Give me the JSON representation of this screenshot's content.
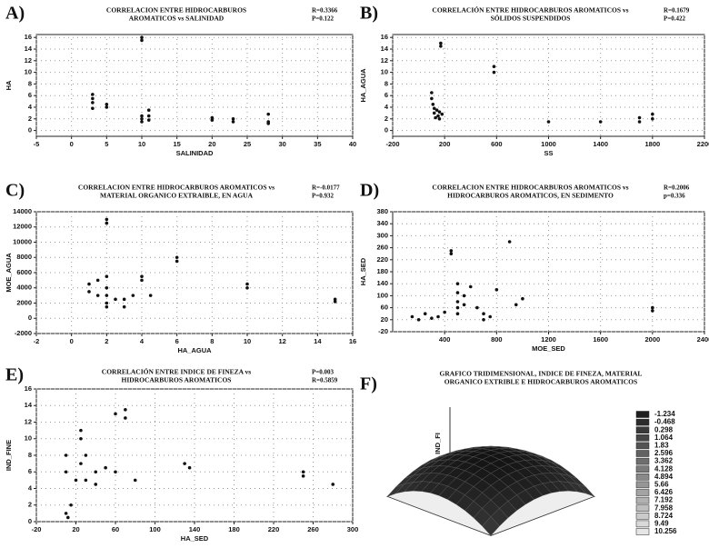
{
  "chart_data": [
    {
      "type": "scatter",
      "label": "A)",
      "title": [
        "CORRELACION ENTRE HIDROCARBUROS",
        "AROMATICOS vs SALINIDAD"
      ],
      "stats": [
        "R=0.3366",
        "P=0.122"
      ],
      "x_label": "SALINIDAD",
      "y_label": "HA",
      "xlim": [
        -5,
        40
      ],
      "ylim": [
        -1,
        16.5
      ],
      "xticks": [
        -5,
        0,
        5,
        10,
        15,
        20,
        25,
        30,
        35,
        40
      ],
      "yticks": [
        0,
        2,
        4,
        6,
        8,
        10,
        12,
        14,
        16
      ],
      "grid": true,
      "color": "#111111",
      "x": [
        3,
        3,
        3,
        3,
        5,
        5,
        10,
        10,
        10,
        10,
        10,
        11,
        11,
        11,
        20,
        20,
        23,
        23,
        28,
        28,
        28
      ],
      "y": [
        6.2,
        5.5,
        4.8,
        3.8,
        4.5,
        4,
        15.5,
        16,
        2.5,
        2,
        1.5,
        3.5,
        2.5,
        1.8,
        2.2,
        1.8,
        2,
        1.5,
        2.8,
        1.5,
        1.2
      ]
    },
    {
      "type": "scatter",
      "label": "B)",
      "title": [
        "CORRELACIÓN ENTRE HIDROCARBUROS AROMATICOS vs",
        "SÓLIDOS SUSPENDIDOS"
      ],
      "stats": [
        "R=0.1679",
        "P=0.422"
      ],
      "x_label": "SS",
      "y_label": "HA_AGUA",
      "xlim": [
        -200,
        2200
      ],
      "ylim": [
        -1,
        16.5
      ],
      "xticks": [
        -200,
        200,
        600,
        1000,
        1400,
        1800,
        2200
      ],
      "yticks": [
        0,
        2,
        4,
        6,
        8,
        10,
        12,
        14,
        16
      ],
      "grid": true,
      "color": "#111111",
      "x": [
        100,
        100,
        110,
        120,
        120,
        130,
        140,
        150,
        160,
        170,
        170,
        160,
        180,
        580,
        580,
        1000,
        1400,
        1700,
        1700,
        1800,
        1800
      ],
      "y": [
        6.5,
        5.5,
        4.5,
        3.8,
        3,
        2.2,
        3.5,
        2.5,
        2,
        15,
        14.5,
        3.2,
        2.8,
        11,
        10,
        1.5,
        1.5,
        2.2,
        1.5,
        2.8,
        2
      ]
    },
    {
      "type": "scatter",
      "label": "C)",
      "title": [
        "CORRELACION ENTRE HIDROCARBUROS AROMATICOS vs",
        "MATERIAL ORGANICO EXTRAIBLE, EN AGUA"
      ],
      "stats": [
        "R=-0.0177",
        "P=0.932"
      ],
      "x_label": "HA_AGUA",
      "y_label": "MOE_AGUA",
      "xlim": [
        -2,
        16
      ],
      "ylim": [
        -2000,
        14000
      ],
      "xticks": [
        -2,
        0,
        2,
        4,
        6,
        8,
        10,
        12,
        14,
        16
      ],
      "yticks": [
        -2000,
        0,
        2000,
        4000,
        6000,
        8000,
        10000,
        12000,
        14000
      ],
      "grid": true,
      "color": "#111111",
      "x": [
        1,
        1,
        1.5,
        1.5,
        2,
        2,
        2,
        2,
        2,
        2,
        2.5,
        2,
        3,
        3,
        3.5,
        4,
        4,
        4.5,
        6,
        6,
        10,
        10,
        15,
        15
      ],
      "y": [
        3500,
        4500,
        5000,
        3000,
        13000,
        12500,
        5500,
        3000,
        2000,
        1500,
        2500,
        4000,
        2500,
        1500,
        3000,
        5500,
        5000,
        3000,
        8000,
        7500,
        4500,
        4000,
        2500,
        2200
      ]
    },
    {
      "type": "scatter",
      "label": "D)",
      "title": [
        "CORRELACION ENTRE HIDROCARBUROS AROMATICOS vs",
        "HIDROCARBUROS AROMATICOS, EN SEDIMENTO"
      ],
      "stats": [
        "R=0.2006",
        "p=0.336"
      ],
      "x_label": "MOE_SED",
      "y_label": "HA_SED",
      "xlim": [
        0,
        2400
      ],
      "ylim": [
        -20,
        380
      ],
      "xticks": [
        400,
        800,
        1200,
        1600,
        2000,
        2400
      ],
      "yticks": [
        -20,
        20,
        60,
        100,
        140,
        180,
        220,
        260,
        300,
        340,
        380
      ],
      "grid": true,
      "color": "#111111",
      "x": [
        150,
        200,
        250,
        300,
        350,
        400,
        450,
        450,
        500,
        500,
        500,
        500,
        500,
        550,
        550,
        600,
        650,
        700,
        700,
        750,
        800,
        900,
        950,
        1000,
        2000,
        2000
      ],
      "y": [
        30,
        20,
        40,
        25,
        30,
        45,
        250,
        240,
        140,
        110,
        80,
        60,
        40,
        100,
        70,
        130,
        60,
        40,
        20,
        30,
        120,
        280,
        70,
        90,
        60,
        50
      ]
    },
    {
      "type": "scatter",
      "label": "E)",
      "title": [
        "CORRELACIÓN ENTRE INDICE DE FINEZA vs",
        "HIDROCARBUROS AROMATICOS"
      ],
      "stats": [
        "P=0.003",
        "R=0.5859"
      ],
      "x_label": "HA_SED",
      "y_label": "IND_FINE",
      "xlim": [
        -20,
        300
      ],
      "ylim": [
        0,
        16
      ],
      "xticks": [
        -20,
        20,
        60,
        100,
        140,
        180,
        220,
        260,
        300
      ],
      "yticks": [
        0,
        2,
        4,
        6,
        8,
        10,
        12,
        14,
        16
      ],
      "grid": true,
      "color": "#111111",
      "x": [
        10,
        10,
        10,
        12,
        15,
        20,
        25,
        25,
        25,
        30,
        30,
        40,
        40,
        50,
        60,
        60,
        70,
        70,
        80,
        130,
        135,
        250,
        250,
        280
      ],
      "y": [
        8,
        6,
        1,
        0.5,
        2,
        5,
        7,
        11,
        10,
        8,
        5,
        4.5,
        6,
        6.5,
        13,
        6,
        13.5,
        12.5,
        5,
        7,
        6.5,
        6,
        5.5,
        4.5
      ]
    },
    {
      "type": "surface",
      "label": "F)",
      "title": [
        "GRAFICO TRIDIMENSIONAL, INDICE DE FINEZA, MATERIAL",
        "ORGANICO EXTRIBLE E HIDROCARBUROS AROMATICOS"
      ],
      "z_label": "IND_FI",
      "levels": [
        -1.234,
        -0.468,
        0.298,
        1.064,
        1.83,
        2.596,
        3.362,
        4.128,
        4.894,
        5.66,
        6.426,
        7.192,
        7.958,
        8.724,
        9.49,
        10.256
      ]
    }
  ]
}
